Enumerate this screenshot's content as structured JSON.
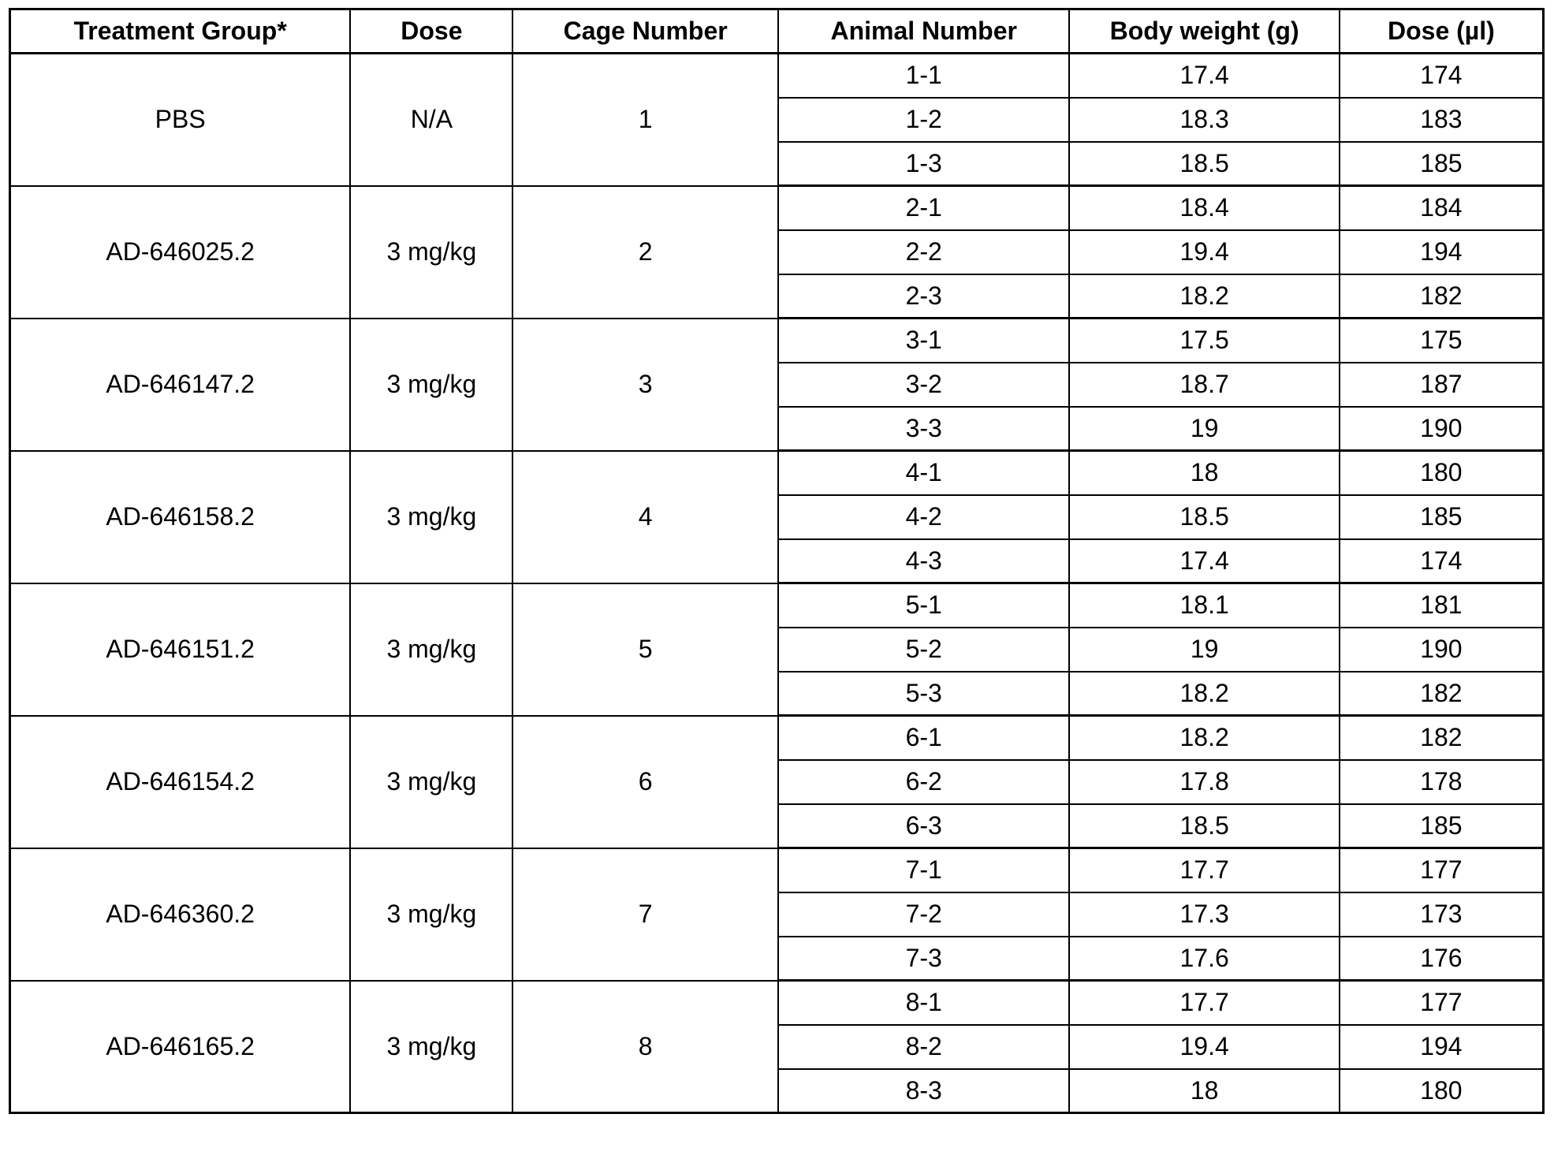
{
  "colors": {
    "border": "#000000",
    "text": "#000000",
    "background": "#ffffff"
  },
  "table": {
    "columns": [
      "Treatment Group*",
      "Dose",
      "Cage Number",
      "Animal Number",
      "Body weight (g)",
      "Dose (µl)"
    ],
    "groups": [
      {
        "treatment": "PBS",
        "dose": "N/A",
        "cage": "1",
        "animals": [
          {
            "number": "1-1",
            "body_weight_g": "17.4",
            "dose_ul": "174"
          },
          {
            "number": "1-2",
            "body_weight_g": "18.3",
            "dose_ul": "183"
          },
          {
            "number": "1-3",
            "body_weight_g": "18.5",
            "dose_ul": "185"
          }
        ]
      },
      {
        "treatment": "AD-646025.2",
        "dose": "3 mg/kg",
        "cage": "2",
        "animals": [
          {
            "number": "2-1",
            "body_weight_g": "18.4",
            "dose_ul": "184"
          },
          {
            "number": "2-2",
            "body_weight_g": "19.4",
            "dose_ul": "194"
          },
          {
            "number": "2-3",
            "body_weight_g": "18.2",
            "dose_ul": "182"
          }
        ]
      },
      {
        "treatment": "AD-646147.2",
        "dose": "3 mg/kg",
        "cage": "3",
        "animals": [
          {
            "number": "3-1",
            "body_weight_g": "17.5",
            "dose_ul": "175"
          },
          {
            "number": "3-2",
            "body_weight_g": "18.7",
            "dose_ul": "187"
          },
          {
            "number": "3-3",
            "body_weight_g": "19",
            "dose_ul": "190"
          }
        ]
      },
      {
        "treatment": "AD-646158.2",
        "dose": "3 mg/kg",
        "cage": "4",
        "animals": [
          {
            "number": "4-1",
            "body_weight_g": "18",
            "dose_ul": "180"
          },
          {
            "number": "4-2",
            "body_weight_g": "18.5",
            "dose_ul": "185"
          },
          {
            "number": "4-3",
            "body_weight_g": "17.4",
            "dose_ul": "174"
          }
        ]
      },
      {
        "treatment": "AD-646151.2",
        "dose": "3 mg/kg",
        "cage": "5",
        "animals": [
          {
            "number": "5-1",
            "body_weight_g": "18.1",
            "dose_ul": "181"
          },
          {
            "number": "5-2",
            "body_weight_g": "19",
            "dose_ul": "190"
          },
          {
            "number": "5-3",
            "body_weight_g": "18.2",
            "dose_ul": "182"
          }
        ]
      },
      {
        "treatment": "AD-646154.2",
        "dose": "3 mg/kg",
        "cage": "6",
        "animals": [
          {
            "number": "6-1",
            "body_weight_g": "18.2",
            "dose_ul": "182"
          },
          {
            "number": "6-2",
            "body_weight_g": "17.8",
            "dose_ul": "178"
          },
          {
            "number": "6-3",
            "body_weight_g": "18.5",
            "dose_ul": "185"
          }
        ]
      },
      {
        "treatment": "AD-646360.2",
        "dose": "3 mg/kg",
        "cage": "7",
        "animals": [
          {
            "number": "7-1",
            "body_weight_g": "17.7",
            "dose_ul": "177"
          },
          {
            "number": "7-2",
            "body_weight_g": "17.3",
            "dose_ul": "173"
          },
          {
            "number": "7-3",
            "body_weight_g": "17.6",
            "dose_ul": "176"
          }
        ]
      },
      {
        "treatment": "AD-646165.2",
        "dose": "3 mg/kg",
        "cage": "8",
        "animals": [
          {
            "number": "8-1",
            "body_weight_g": "17.7",
            "dose_ul": "177"
          },
          {
            "number": "8-2",
            "body_weight_g": "19.4",
            "dose_ul": "194"
          },
          {
            "number": "8-3",
            "body_weight_g": "18",
            "dose_ul": "180"
          }
        ]
      }
    ]
  }
}
